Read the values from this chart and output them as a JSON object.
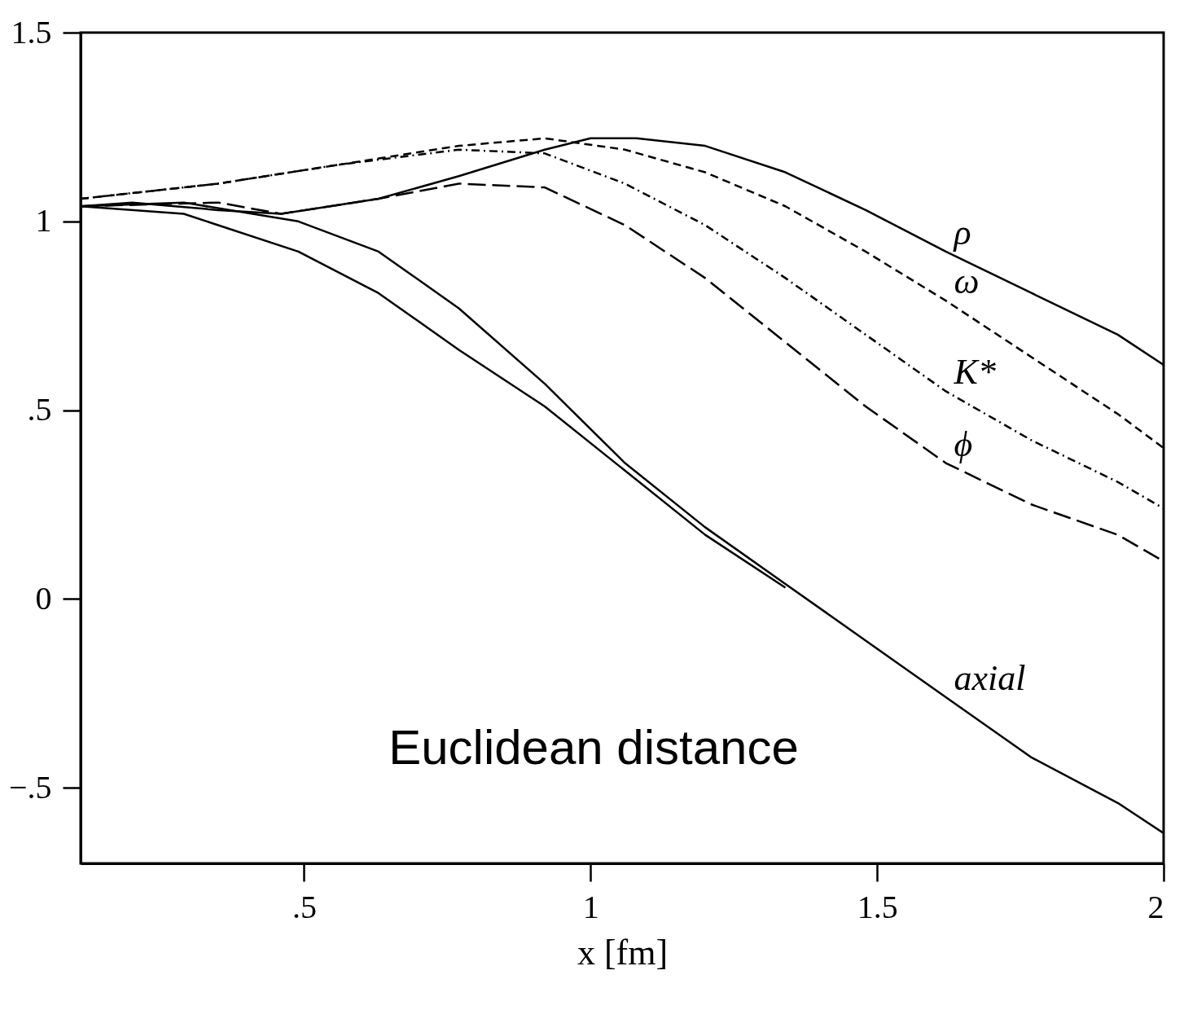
{
  "chart_data": {
    "type": "line",
    "xlabel": "x [fm]",
    "xlim": [
      0.11,
      2
    ],
    "ylim": [
      -0.7,
      1.5
    ],
    "xticks": [
      {
        "value": 0.5,
        "label": ".5"
      },
      1,
      1.5,
      2
    ],
    "yticks": [
      {
        "value": -0.5,
        "label": "−.5"
      },
      0,
      {
        "value": 0.5,
        "label": ".5"
      },
      1,
      1.5
    ],
    "grid": false,
    "annotations": [
      "Euclidean distance"
    ],
    "series": [
      {
        "name": "ρ",
        "color": "#000000",
        "line_style": "solid",
        "x": [
          0.11,
          0.2,
          0.35,
          0.46,
          0.63,
          0.77,
          0.92,
          1.0,
          1.08,
          1.2,
          1.34,
          1.48,
          1.62,
          1.77,
          1.92,
          2.0
        ],
        "values": [
          1.04,
          1.05,
          1.03,
          1.02,
          1.06,
          1.12,
          1.19,
          1.22,
          1.22,
          1.2,
          1.13,
          1.03,
          0.92,
          0.81,
          0.7,
          0.62
        ]
      },
      {
        "name": "ω",
        "color": "#000000",
        "line_style": "dashed",
        "x": [
          0.11,
          0.35,
          0.56,
          0.77,
          0.92,
          1.06,
          1.2,
          1.34,
          1.48,
          1.62,
          1.77,
          1.92,
          2.0
        ],
        "values": [
          1.06,
          1.1,
          1.15,
          1.2,
          1.22,
          1.19,
          1.13,
          1.04,
          0.92,
          0.79,
          0.64,
          0.49,
          0.4
        ]
      },
      {
        "name": "K*",
        "color": "#000000",
        "line_style": "dashdot",
        "x": [
          0.11,
          0.35,
          0.56,
          0.77,
          0.92,
          1.06,
          1.2,
          1.34,
          1.48,
          1.62,
          1.77,
          1.92,
          2.0
        ],
        "values": [
          1.06,
          1.1,
          1.15,
          1.19,
          1.18,
          1.1,
          0.99,
          0.85,
          0.7,
          0.55,
          0.42,
          0.31,
          0.24
        ]
      },
      {
        "name": "ϕ",
        "color": "#000000",
        "line_style": "longdash",
        "x": [
          0.11,
          0.35,
          0.46,
          0.63,
          0.77,
          0.92,
          1.06,
          1.2,
          1.34,
          1.48,
          1.62,
          1.77,
          1.92,
          2.0
        ],
        "values": [
          1.04,
          1.05,
          1.02,
          1.06,
          1.1,
          1.09,
          0.99,
          0.85,
          0.68,
          0.51,
          0.36,
          0.25,
          0.17,
          0.1
        ]
      },
      {
        "name": "axial",
        "color": "#000000",
        "line_style": "solid",
        "x": [
          0.11,
          0.29,
          0.49,
          0.63,
          0.77,
          0.92,
          1.06,
          1.2,
          1.34,
          1.48,
          1.62,
          1.77,
          1.92,
          2.0
        ],
        "values": [
          1.04,
          1.05,
          1.0,
          0.92,
          0.77,
          0.57,
          0.36,
          0.19,
          0.04,
          -0.11,
          -0.26,
          -0.42,
          -0.54,
          -0.62
        ]
      },
      {
        "color": "#000000",
        "line_style": "solid",
        "x": [
          0.11,
          0.29,
          0.49,
          0.63,
          0.77,
          0.92,
          1.06,
          1.2,
          1.34
        ],
        "values": [
          1.04,
          1.02,
          0.92,
          0.81,
          0.66,
          0.51,
          0.34,
          0.17,
          0.03
        ]
      }
    ]
  }
}
